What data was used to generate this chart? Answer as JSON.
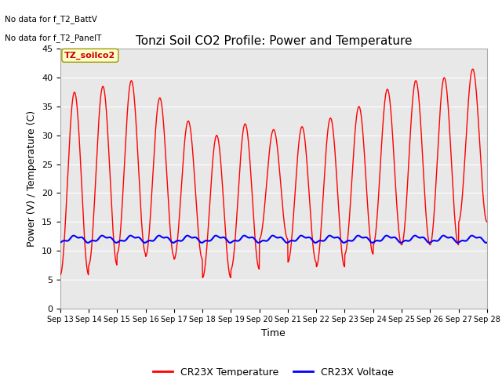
{
  "title": "Tonzi Soil CO2 Profile: Power and Temperature",
  "ylabel": "Power (V) / Temperature (C)",
  "xlabel": "Time",
  "topleft_text1": "No data for f_T2_BattV",
  "topleft_text2": "No data for f_T2_PanelT",
  "legend_label": "TZ_soilco2",
  "ylim": [
    0,
    45
  ],
  "yticks": [
    0,
    5,
    10,
    15,
    20,
    25,
    30,
    35,
    40,
    45
  ],
  "xtick_labels": [
    "Sep 13",
    "Sep 14",
    "Sep 15",
    "Sep 16",
    "Sep 17",
    "Sep 18",
    "Sep 19",
    "Sep 20",
    "Sep 21",
    "Sep 22",
    "Sep 23",
    "Sep 24",
    "Sep 25",
    "Sep 26",
    "Sep 27",
    "Sep 28"
  ],
  "fig_bg_color": "#ffffff",
  "plot_bg_color": "#e8e8e8",
  "line_color_temp": "#ff0000",
  "line_color_volt": "#0000ff",
  "legend_line1": "CR23X Temperature",
  "legend_line2": "CR23X Voltage",
  "grid_color": "#ffffff",
  "num_days": 15,
  "day_peaks": [
    37.5,
    38.5,
    39.5,
    36.5,
    32.5,
    30.0,
    32.0,
    31.0,
    31.5,
    33.0,
    35.0,
    38.0,
    39.5,
    40.0,
    41.5
  ],
  "day_troughs": [
    5.8,
    7.5,
    9.5,
    9.0,
    8.5,
    5.3,
    6.8,
    12.0,
    8.0,
    7.2,
    9.4,
    11.0,
    11.0,
    11.0,
    15.0
  ],
  "volt_base": 12.0,
  "title_fontsize": 11,
  "axis_label_fontsize": 9,
  "tick_fontsize": 8
}
